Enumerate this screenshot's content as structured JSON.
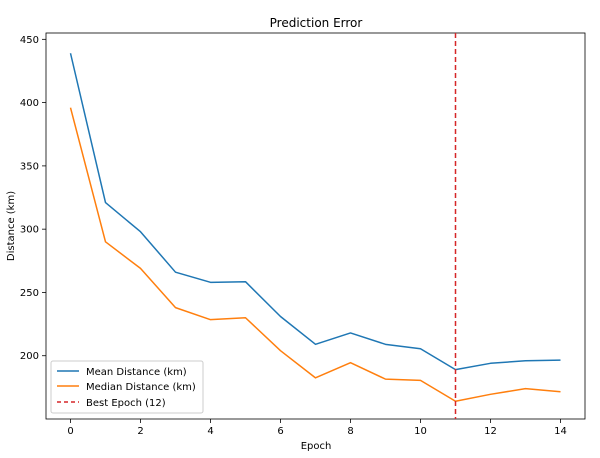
{
  "chart_data": {
    "type": "line",
    "title": "Prediction Error",
    "xlabel": "Epoch",
    "ylabel": "Distance (km)",
    "xlim": [
      -0.7,
      14.7
    ],
    "ylim": [
      150,
      455
    ],
    "xticks": [
      0,
      2,
      4,
      6,
      8,
      10,
      12,
      14
    ],
    "yticks": [
      200,
      250,
      300,
      350,
      400,
      450
    ],
    "x": [
      0,
      1,
      2,
      3,
      4,
      5,
      6,
      7,
      8,
      9,
      10,
      11,
      12,
      13,
      14
    ],
    "series": [
      {
        "name": "Mean Distance (km)",
        "color": "#1f77b4",
        "values": [
          439,
          321,
          298,
          266,
          258,
          258.5,
          231,
          209,
          218,
          209,
          205.5,
          189,
          194,
          196,
          196.5
        ]
      },
      {
        "name": "Median Distance (km)",
        "color": "#ff7f0e",
        "values": [
          396,
          290,
          269,
          238,
          228.5,
          230,
          204,
          182.5,
          194.5,
          181.5,
          180.5,
          164,
          169.5,
          174,
          171.5
        ]
      }
    ],
    "vline": {
      "x": 11,
      "label": "Best Epoch (12)",
      "color": "#d62728",
      "style": "dashed"
    },
    "legend_position": "lower-left",
    "grid": false
  }
}
